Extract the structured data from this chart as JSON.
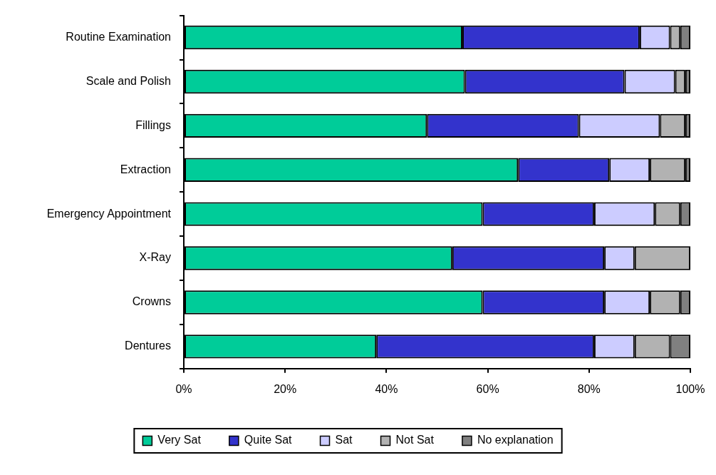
{
  "chart_data": {
    "type": "bar",
    "orientation": "horizontal",
    "stacked": true,
    "categories": [
      "Routine Examination",
      "Scale and Polish",
      "Fillings",
      "Extraction",
      "Emergency Appointment",
      "X-Ray",
      "Crowns",
      "Dentures"
    ],
    "series": [
      {
        "name": "Very Sat",
        "color": "#00cc99",
        "values": [
          55,
          55.5,
          48,
          66,
          59,
          53,
          59,
          38
        ]
      },
      {
        "name": "Quite Sat",
        "color": "#3333cc",
        "values": [
          35,
          31.5,
          30,
          18,
          22,
          30,
          24,
          43
        ]
      },
      {
        "name": "Sat",
        "color": "#ccccff",
        "values": [
          6,
          10,
          16,
          8,
          12,
          6,
          9,
          8
        ]
      },
      {
        "name": "Not Sat",
        "color": "#b2b2b2",
        "values": [
          2,
          2,
          5,
          7,
          5,
          11,
          6,
          7
        ]
      },
      {
        "name": "No explanation",
        "color": "#808080",
        "values": [
          2,
          1,
          1,
          1,
          2,
          0,
          2,
          4
        ]
      }
    ],
    "xlim": [
      0,
      100
    ],
    "xticks": [
      {
        "value": 0,
        "label": "0%"
      },
      {
        "value": 20,
        "label": "20%"
      },
      {
        "value": 40,
        "label": "40%"
      },
      {
        "value": 60,
        "label": "60%"
      },
      {
        "value": 80,
        "label": "80%"
      },
      {
        "value": 100,
        "label": "100%"
      }
    ],
    "grid": false,
    "legend": "bottom"
  }
}
